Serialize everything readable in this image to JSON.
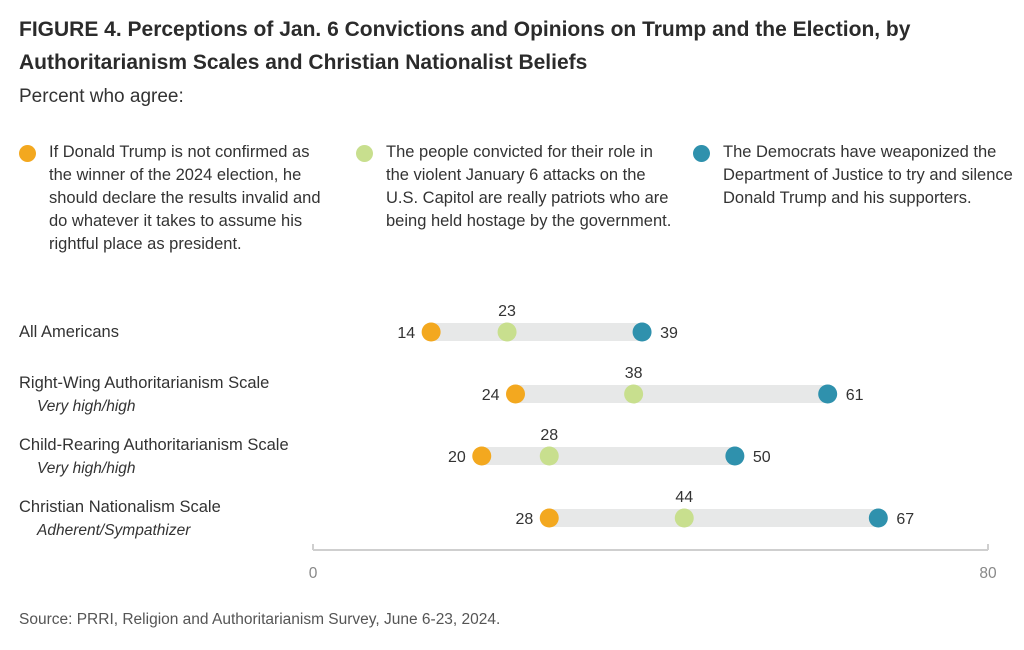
{
  "title": "FIGURE 4.  Perceptions of Jan. 6 Convictions and Opinions on Trump and the Election, by Authoritarianism Scales and Christian Nationalist Beliefs",
  "subtitle": "Percent who agree:",
  "source": "Source: PRRI, Religion and Authoritarianism Survey, June 6-23, 2024.",
  "colors": {
    "track": "#e7e8e8",
    "axis": "#cfcfcf",
    "series": [
      "#f3a81f",
      "#c8df8e",
      "#2f91ad"
    ]
  },
  "chart_data": {
    "type": "dot",
    "categories": [
      {
        "label": "All Americans",
        "sublabel": ""
      },
      {
        "label": "Right-Wing Authoritarianism Scale",
        "sublabel": "Very high/high"
      },
      {
        "label": "Child-Rearing Authoritarianism Scale",
        "sublabel": "Very high/high"
      },
      {
        "label": "Christian Nationalism Scale",
        "sublabel": "Adherent/Sympathizer"
      }
    ],
    "series": [
      {
        "name": "If Donald Trump is not confirmed as the winner of the 2024 election, he should declare the results invalid and do whatever it takes to assume his rightful place as president.",
        "values": [
          14,
          24,
          20,
          28
        ]
      },
      {
        "name": "The people convicted for their role in the violent January 6 attacks on the U.S. Capitol are really patriots who are being held hostage by the government.",
        "values": [
          23,
          38,
          28,
          44
        ]
      },
      {
        "name": "The Democrats have weaponized the Department of Justice to try and silence Donald Trump and his supporters.",
        "values": [
          39,
          61,
          50,
          67
        ]
      }
    ],
    "xlim": [
      0,
      80
    ],
    "x_tick_labels": [
      "0",
      "80"
    ],
    "legend_position": "top"
  }
}
